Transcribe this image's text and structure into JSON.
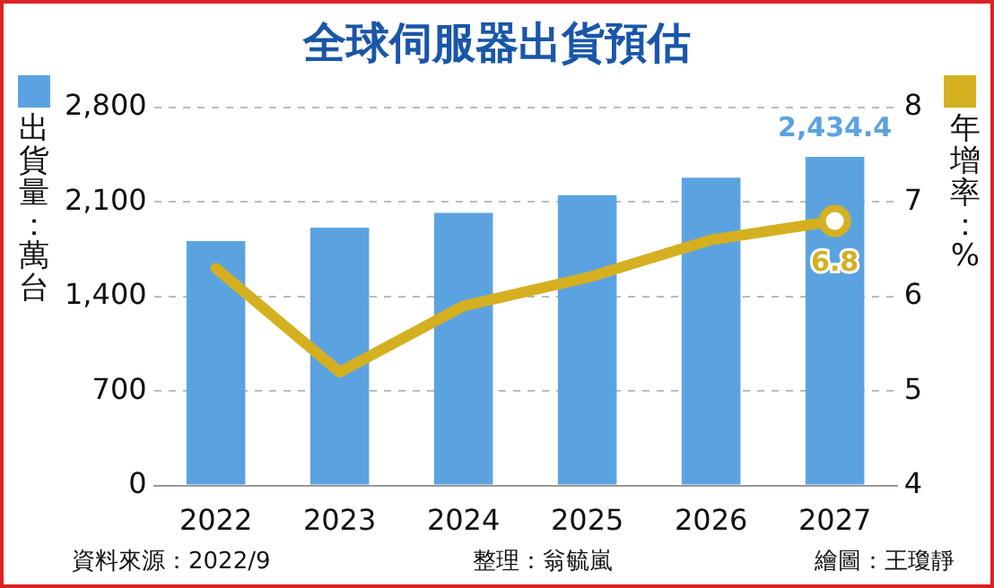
{
  "chart_data": {
    "type": "bar",
    "title": "全球伺服器出貨預估",
    "ylabel": "出貨量：萬台",
    "y2label": "年增率：%",
    "categories": [
      "2022",
      "2023",
      "2024",
      "2025",
      "2026",
      "2027"
    ],
    "series": [
      {
        "color": "#5ba3e0",
        "values": [
          1810,
          1910,
          2020,
          2150,
          2280,
          2434.4
        ],
        "value_labels": [
          null,
          null,
          null,
          null,
          null,
          "2,434.4"
        ]
      },
      {
        "type": "line",
        "axis": "y2",
        "color": "#d4b021",
        "values": [
          6.3,
          5.2,
          5.9,
          6.2,
          6.6,
          6.8
        ],
        "value_labels": [
          null,
          null,
          null,
          null,
          null,
          "6.8"
        ]
      }
    ],
    "ylim": [
      0,
      2800
    ],
    "yticks": [
      0,
      700,
      {
        "value": 1400,
        "label": "1,400"
      },
      {
        "value": 2100,
        "label": "2,100"
      },
      {
        "value": 2800,
        "label": "2,800"
      }
    ],
    "y2lim": [
      4,
      8
    ],
    "y2ticks": [
      4,
      5,
      6,
      7,
      8
    ],
    "grid": "y",
    "legend": false,
    "annotations": [
      "資料來源：2022/9",
      "整理：翁毓嵐",
      "繪圖：王瓊靜"
    ]
  }
}
